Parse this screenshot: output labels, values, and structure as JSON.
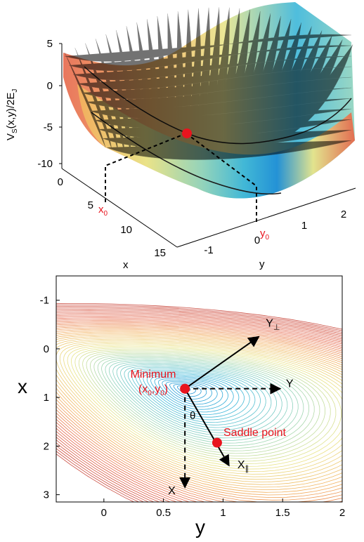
{
  "colors": {
    "red": "#e8141e",
    "axis": "#000000",
    "colormap": [
      "#1f8fd6",
      "#3bb6d9",
      "#8fd3bd",
      "#e9e58a",
      "#f2b05c",
      "#e6674b",
      "#c9473b"
    ]
  },
  "chart_data": [
    {
      "type": "surface",
      "zlabel": "V_S(x,y)/2E_J",
      "zlabel_parts": {
        "main": "V",
        "sub": "S",
        "rest": "(x,y)/2E",
        "sub2": "J"
      },
      "xlabel": "x",
      "ylabel": "y",
      "z_ticks": [
        "5",
        "0",
        "-5",
        "-10"
      ],
      "x_ticks": [
        "0",
        "5",
        "10",
        "15"
      ],
      "y_ticks": [
        "-1",
        "0",
        "1",
        "2"
      ],
      "zlim": [
        -10,
        5
      ],
      "xlim": [
        0,
        15
      ],
      "ylim": [
        -1.5,
        2.5
      ],
      "annotations": [
        {
          "text": "x",
          "sub": "0",
          "color": "red"
        },
        {
          "text": "y",
          "sub": "0",
          "color": "red"
        }
      ],
      "marker": {
        "label": "minimum",
        "color": "red"
      }
    },
    {
      "type": "contour",
      "xlabel": "y",
      "ylabel": "x",
      "x_ticks": [
        "0",
        "0.5",
        "1",
        "1.5",
        "2"
      ],
      "y_ticks": [
        "-1",
        "0",
        "1",
        "2",
        "3"
      ],
      "xlim": [
        -0.4,
        2.0
      ],
      "ylim": [
        -1.5,
        3.15
      ],
      "points": [
        {
          "name": "Minimum",
          "label_line1": "Minimum",
          "label_line2_parts": {
            "a": "(x",
            "sub1": "0",
            "b": ",y",
            "sub2": "0",
            "c": ")"
          },
          "y": 0.68,
          "x": 0.82
        },
        {
          "name": "Saddle point",
          "label_line1": "Saddle point",
          "y": 0.95,
          "x": 1.93
        }
      ],
      "vectors": [
        {
          "label": "Y",
          "sub": "⊥",
          "style": "solid",
          "from": [
            0.68,
            0.82
          ],
          "to": [
            1.3,
            -0.25
          ]
        },
        {
          "label": "Y",
          "style": "dashed",
          "from": [
            0.68,
            0.82
          ],
          "to": [
            1.48,
            0.82
          ]
        },
        {
          "label": "X",
          "sub": "∥",
          "style": "solid",
          "from": [
            0.68,
            0.82
          ],
          "to": [
            1.05,
            2.4
          ]
        },
        {
          "label": "X",
          "style": "dashed",
          "from": [
            0.68,
            0.82
          ],
          "to": [
            0.68,
            2.85
          ]
        }
      ],
      "angle_label": "θ"
    }
  ]
}
